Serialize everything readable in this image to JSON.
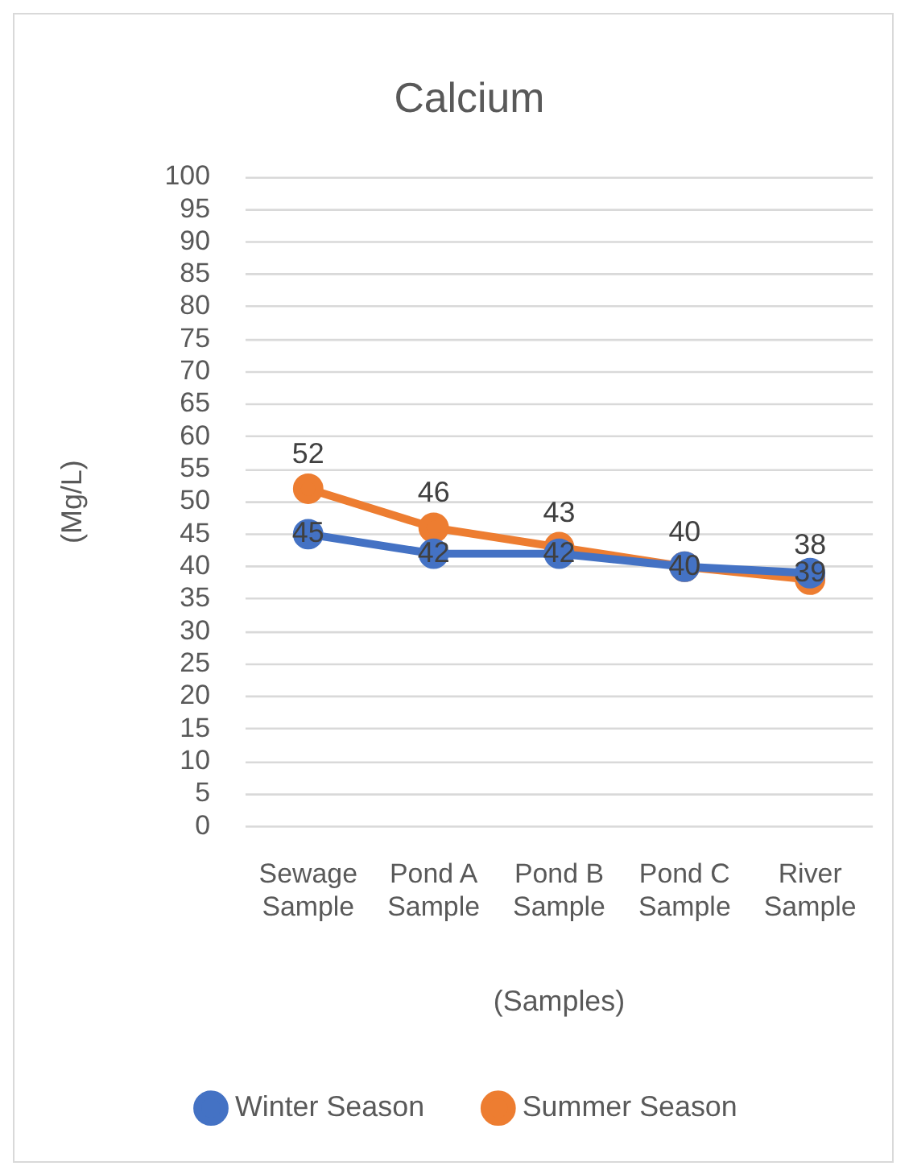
{
  "chart_data": {
    "type": "line",
    "title": "Calcium",
    "xlabel": "(Samples)",
    "ylabel": "(Mg/L)",
    "categories": [
      "Sewage Sample",
      "Pond A Sample",
      "Pond B Sample",
      "Pond C Sample",
      "River Sample"
    ],
    "series": [
      {
        "name": "Winter Season",
        "color": "#4472c4",
        "values": [
          45,
          42,
          42,
          40,
          39
        ]
      },
      {
        "name": "Summer Season",
        "color": "#ed7d31",
        "values": [
          52,
          46,
          43,
          40,
          38
        ]
      }
    ],
    "ylim": [
      0,
      100
    ],
    "yticks": [
      0,
      5,
      10,
      15,
      20,
      25,
      30,
      35,
      40,
      45,
      50,
      55,
      60,
      65,
      70,
      75,
      80,
      85,
      90,
      95,
      100
    ],
    "grid": "y",
    "legend": "bottom",
    "marker": "circle",
    "line_style": "solid",
    "data_labels": true
  }
}
